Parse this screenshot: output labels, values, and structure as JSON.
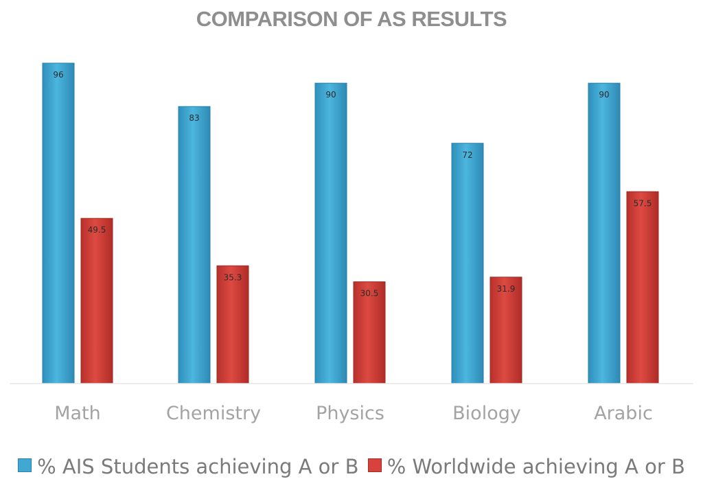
{
  "chart_data": {
    "type": "bar",
    "title": "COMPARISON OF AS RESULTS",
    "categories": [
      "Math",
      "Chemistry",
      "Physics",
      "Biology",
      "Arabic"
    ],
    "series": [
      {
        "name": "% AIS Students achieving A or B",
        "values": [
          96,
          83,
          90,
          72,
          90
        ],
        "labels": [
          "96",
          "83",
          "90",
          "72",
          "90"
        ],
        "color": "#3fa9d4"
      },
      {
        "name": "% Worldwide achieving A or B",
        "values": [
          49.5,
          35.3,
          30.5,
          31.9,
          57.5
        ],
        "labels": [
          "49.5",
          "35.3",
          "30.5",
          "31.9",
          "57.5"
        ],
        "color": "#d8423c"
      }
    ],
    "ylim": [
      0,
      100
    ],
    "grid": false,
    "legend_position": "bottom"
  }
}
